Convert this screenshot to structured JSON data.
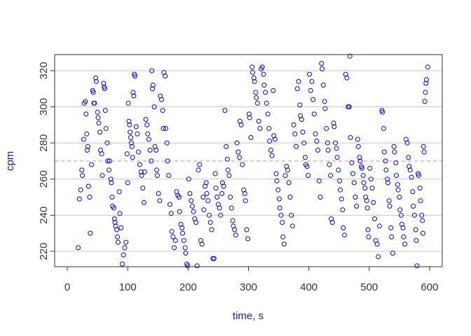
{
  "chart_data": {
    "type": "scatter",
    "xlabel": "time, s",
    "ylabel": "cpm",
    "xlim": [
      -21,
      621
    ],
    "ylim": [
      211.5,
      328.9
    ],
    "xticks": [
      0,
      100,
      200,
      300,
      400,
      500,
      600
    ],
    "yticks": [
      220,
      240,
      260,
      280,
      300,
      320
    ],
    "grid": true,
    "grid_axis": "y",
    "hline": 270,
    "hline_color": "#f08080",
    "series": [
      {
        "color": "#0000ff",
        "x": [
          18,
          20,
          22,
          24,
          25,
          27,
          28,
          30,
          31,
          32,
          33,
          34,
          35,
          37,
          38,
          40,
          42,
          43,
          44,
          45,
          47,
          48,
          50,
          51,
          52,
          54,
          55,
          57,
          58,
          60,
          61,
          62,
          63,
          64,
          66,
          67,
          69,
          70,
          72,
          73,
          74,
          75,
          77,
          78,
          79,
          80,
          82,
          83,
          84,
          86,
          87,
          89,
          91,
          93,
          95,
          97,
          99,
          100,
          101,
          102,
          103,
          104,
          105,
          106,
          107,
          108,
          109,
          110,
          111,
          112,
          114,
          116,
          118,
          120,
          122,
          123,
          125,
          127,
          128,
          130,
          132,
          133,
          135,
          137,
          139,
          140,
          141,
          142,
          144,
          145,
          147,
          148,
          149,
          151,
          153,
          154,
          156,
          158,
          159,
          160,
          162,
          163,
          165,
          166,
          168,
          170,
          172,
          173,
          175,
          177,
          179,
          181,
          183,
          185,
          186,
          188,
          190,
          191,
          193,
          195,
          196,
          198,
          199,
          201,
          203,
          205,
          207,
          209,
          211,
          213,
          215,
          217,
          219,
          221,
          223,
          225,
          226,
          228,
          230,
          231,
          233,
          235,
          237,
          239,
          241,
          243,
          245,
          246,
          248,
          250,
          252,
          254,
          256,
          257,
          259,
          261,
          263,
          265,
          266,
          268,
          270,
          272,
          274,
          275,
          277,
          279,
          281,
          283,
          285,
          286,
          288,
          290,
          292,
          294,
          295,
          297,
          299,
          301,
          302,
          304,
          306,
          307,
          309,
          310,
          312,
          313,
          315,
          317,
          319,
          321,
          323,
          325,
          326,
          328,
          330,
          332,
          334,
          335,
          337,
          339,
          341,
          342,
          344,
          346,
          347,
          349,
          351,
          352,
          354,
          356,
          357,
          359,
          361,
          363,
          365,
          367,
          369,
          371,
          373,
          375,
          377,
          379,
          381,
          383,
          385,
          386,
          388,
          390,
          392,
          394,
          395,
          397,
          399,
          401,
          403,
          405,
          407,
          409,
          411,
          413,
          415,
          417,
          419,
          421,
          422,
          424,
          426,
          427,
          429,
          431,
          432,
          434,
          436,
          437,
          439,
          441,
          442,
          444,
          446,
          447,
          449,
          451,
          452,
          454,
          456,
          457,
          459,
          461,
          463,
          465,
          467,
          469,
          471,
          473,
          475,
          477,
          479,
          468,
          481,
          482,
          484,
          485,
          487,
          488,
          490,
          491,
          493,
          494,
          496,
          497,
          498,
          499,
          501,
          503,
          505,
          507,
          509,
          511,
          513,
          515,
          517,
          521,
          522,
          524,
          525,
          527,
          528,
          530,
          531,
          533,
          534,
          536,
          537,
          539,
          541,
          542,
          544,
          545,
          547,
          548,
          550,
          551,
          553,
          554,
          556,
          557,
          559,
          561,
          563,
          565,
          566,
          568,
          570,
          572,
          573,
          575,
          577,
          578,
          579,
          581,
          582,
          584,
          585,
          587,
          588,
          589,
          590,
          591,
          592,
          593,
          594,
          595,
          597
        ],
        "y": [
          222,
          249,
          254,
          265,
          262,
          282,
          302,
          303,
          296,
          285,
          276,
          278,
          256,
          250,
          230,
          268,
          309,
          308,
          302,
          302,
          316,
          314,
          297,
          294,
          291,
          286,
          276,
          274,
          262,
          313,
          311,
          310,
          298,
          288,
          280,
          270,
          265,
          270,
          260,
          258,
          250,
          245,
          244,
          238,
          236,
          234,
          232,
          228,
          225,
          253,
          241,
          233,
          213,
          218,
          222,
          225,
          274,
          258,
          302,
          292,
          290,
          286,
          283,
          280,
          278,
          272,
          308,
          306,
          318,
          317,
          289,
          285,
          275,
          268,
          264,
          262,
          255,
          247,
          264,
          293,
          290,
          285,
          282,
          276,
          270,
          320,
          310,
          312,
          300,
          278,
          276,
          265,
          262,
          252,
          248,
          306,
          304,
          298,
          288,
          319,
          317,
          288,
          280,
          270,
          262,
          246,
          241,
          231,
          228,
          222,
          226,
          253,
          251,
          250,
          242,
          235,
          233,
          230,
          226,
          222,
          219,
          213,
          212,
          260,
          252,
          248,
          245,
          242,
          238,
          236,
          212,
          265,
          268,
          226,
          224,
          250,
          243,
          256,
          258,
          252,
          248,
          240,
          236,
          232,
          216,
          216,
          263,
          255,
          250,
          246,
          244,
          240,
          252,
          258,
          256,
          298,
          278,
          271,
          265,
          262,
          250,
          244,
          237,
          234,
          232,
          229,
          280,
          275,
          272,
          292,
          290,
          268,
          254,
          252,
          248,
          232,
          227,
          296,
          294,
          283,
          322,
          319,
          316,
          314,
          308,
          305,
          302,
          292,
          288,
          321,
          322,
          318,
          312,
          308,
          302,
          296,
          288,
          281,
          276,
          273,
          309,
          284,
          282,
          263,
          259,
          254,
          249,
          244,
          240,
          236,
          228,
          224,
          262,
          267,
          265,
          258,
          250,
          240,
          234,
          290,
          285,
          278,
          310,
          314,
          301,
          295,
          293,
          286,
          280,
          272,
          268,
          267,
          262,
          318,
          309,
          314,
          304,
          296,
          285,
          281,
          276,
          259,
          250,
          324,
          321,
          312,
          303,
          299,
          288,
          280,
          276,
          268,
          262,
          238,
          236,
          291,
          289,
          280,
          277,
          272,
          265,
          259,
          254,
          249,
          243,
          233,
          229,
          318,
          316,
          300,
          300,
          283,
          269,
          263,
          258,
          250,
          245,
          328,
          282,
          278,
          272,
          270,
          267,
          266,
          262,
          258,
          255,
          250,
          248,
          244,
          232,
          228,
          266,
          260,
          255,
          247,
          238,
          226,
          224,
          217,
          234,
          298,
          297,
          288,
          275,
          270,
          265,
          260,
          258,
          248,
          245,
          233,
          228,
          219,
          278,
          275,
          269,
          262,
          257,
          254,
          250,
          243,
          240,
          235,
          233,
          228,
          224,
          282,
          280,
          272,
          267,
          265,
          261,
          253,
          245,
          240,
          232,
          226,
          212,
          263,
          262,
          255,
          248,
          240,
          237,
          230,
          278,
          275,
          303,
          308,
          313,
          315,
          322
        ]
      }
    ]
  }
}
